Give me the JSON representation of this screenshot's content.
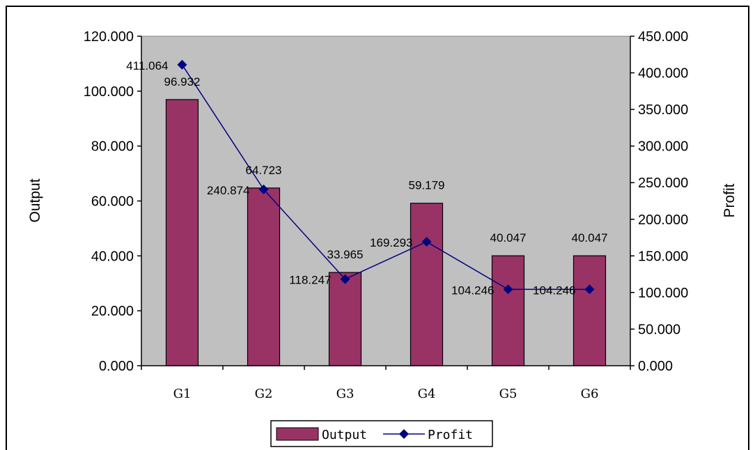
{
  "chart_data": {
    "type": "bar",
    "categories": [
      "G1",
      "G2",
      "G3",
      "G4",
      "G5",
      "G6"
    ],
    "series": [
      {
        "name": "Output",
        "type": "bar",
        "axis": "left",
        "color": "#993366",
        "values": [
          96.932,
          64.723,
          33.965,
          59.179,
          40.047,
          40.047
        ],
        "labels": [
          "96.932",
          "64.723",
          "33.965",
          "59.179",
          "40.047",
          "40.047"
        ]
      },
      {
        "name": "Profit",
        "type": "line",
        "axis": "right",
        "color": "#000080",
        "marker": "diamond",
        "values": [
          411.064,
          240.874,
          118.247,
          169.293,
          104.246,
          104.246
        ],
        "labels": [
          "411.064",
          "240.874",
          "118.247",
          "169.293",
          "104.246",
          "104.246"
        ]
      }
    ],
    "ylabel": "Output",
    "y2label": "Profit",
    "ylim": [
      0,
      120
    ],
    "y2lim": [
      0,
      450
    ],
    "yticks": [
      "0.000",
      "20.000",
      "40.000",
      "60.000",
      "80.000",
      "100.000",
      "120.000"
    ],
    "y2ticks": [
      "0.000",
      "50.000",
      "100.000",
      "150.000",
      "200.000",
      "250.000",
      "300.000",
      "350.000",
      "400.000",
      "450.000"
    ],
    "plot_background": "#c0c0c0",
    "grid": false,
    "legend_position": "bottom-center"
  }
}
